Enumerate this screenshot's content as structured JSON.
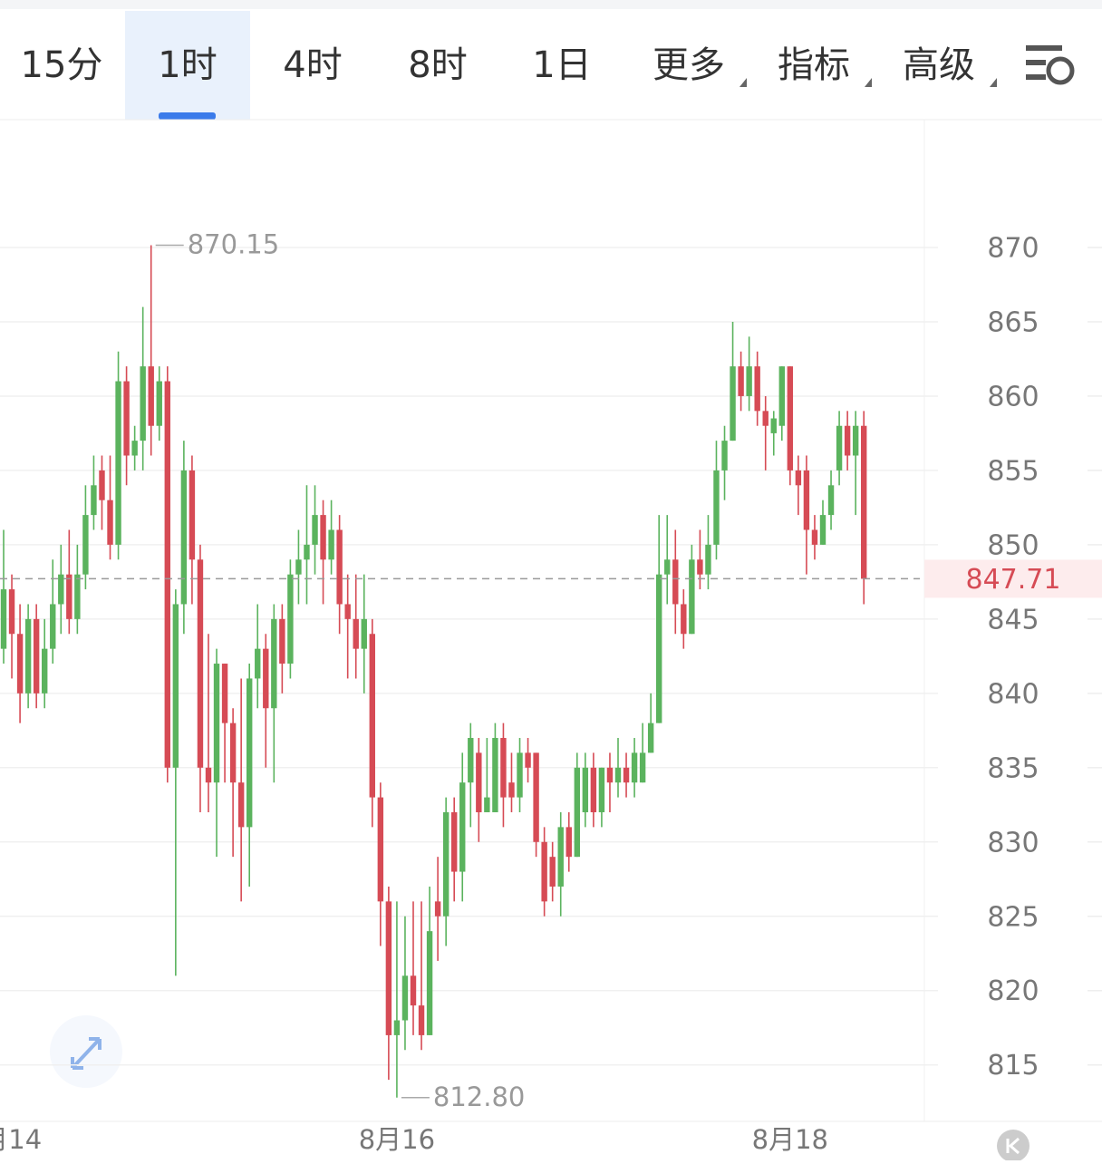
{
  "toolbar": {
    "tabs": [
      "15分",
      "1时",
      "4时",
      "8时",
      "1日",
      "更多",
      "指标",
      "高级"
    ],
    "selected": "1时"
  },
  "chart_data": {
    "type": "candlestick",
    "categories": [
      "8月14",
      null,
      null,
      null,
      null,
      null,
      null,
      null,
      null,
      null,
      null,
      null,
      null,
      null,
      null,
      null,
      null,
      null,
      null,
      null,
      null,
      null,
      null,
      null,
      null,
      null,
      null,
      null,
      null,
      null,
      null,
      null,
      null,
      null,
      null,
      null,
      null,
      null,
      null,
      null,
      null,
      null,
      null,
      null,
      null,
      null,
      null,
      null,
      "8月16",
      null,
      null,
      null,
      null,
      null,
      null,
      null,
      null,
      null,
      null,
      null,
      null,
      null,
      null,
      null,
      null,
      null,
      null,
      null,
      null,
      null,
      null,
      null,
      null,
      null,
      null,
      null,
      null,
      null,
      null,
      null,
      null,
      null,
      null,
      null,
      null,
      null,
      null,
      null,
      null,
      null,
      null,
      null,
      null,
      null,
      null,
      null,
      "8月18",
      null,
      null,
      null,
      null,
      null,
      null,
      null,
      null,
      null
    ],
    "open": [
      843,
      847,
      844,
      840,
      845,
      840,
      843,
      846,
      848,
      845,
      848,
      852,
      855,
      853,
      850,
      861,
      856,
      857,
      862,
      858,
      861,
      835,
      846,
      855,
      849,
      835,
      834,
      842,
      838,
      834,
      831,
      841,
      843,
      839,
      845,
      842,
      848,
      849,
      850,
      852,
      849,
      851,
      846,
      845,
      843,
      844,
      833,
      826,
      817,
      818,
      821,
      819,
      817,
      826,
      825,
      832,
      828,
      834,
      836,
      832,
      832,
      837,
      834,
      833,
      836,
      836,
      830,
      829,
      827,
      831,
      829,
      832,
      835,
      832,
      835,
      834,
      835,
      834,
      834,
      836,
      838,
      848,
      849,
      846,
      844,
      849,
      848,
      850,
      855,
      857,
      862,
      860,
      862,
      859,
      857.5,
      858,
      862,
      855,
      855,
      851,
      850,
      852,
      855,
      858,
      856,
      858
    ],
    "high": [
      851,
      848,
      846,
      846,
      846,
      845,
      849,
      850,
      851,
      850,
      854,
      856,
      856,
      856,
      863,
      862,
      858,
      866,
      870.15,
      862,
      862,
      847,
      857,
      856,
      850,
      844,
      843,
      842,
      839,
      841,
      842,
      846,
      844,
      846,
      846,
      849,
      851,
      854,
      854,
      853,
      853,
      852,
      848,
      848,
      848,
      845,
      834,
      827,
      826,
      825,
      826,
      826,
      827,
      829,
      833,
      833,
      836,
      838,
      837,
      837,
      838,
      838,
      836,
      837,
      837,
      836,
      831,
      830,
      832,
      832,
      836,
      836,
      836,
      835,
      836,
      837,
      836,
      837,
      838,
      840,
      852,
      852,
      851,
      847,
      850,
      851,
      852,
      857,
      858,
      865,
      863,
      864,
      863,
      860,
      859,
      862,
      862,
      856,
      856,
      852,
      853,
      855,
      859,
      859,
      859,
      859
    ],
    "low": [
      842,
      841,
      838,
      839,
      839,
      839,
      842,
      844,
      844,
      844,
      847,
      851,
      851,
      849,
      849,
      854,
      855,
      855,
      856,
      857,
      834,
      821,
      844,
      846,
      832,
      832,
      829,
      834,
      829,
      826,
      827,
      839,
      835,
      834,
      840,
      841,
      846,
      846,
      848,
      846,
      848,
      844,
      841,
      841,
      840,
      831,
      823,
      814,
      812.8,
      816,
      817,
      816,
      817,
      822,
      823,
      826,
      826,
      831,
      830,
      832,
      832,
      831,
      832,
      832,
      834,
      829,
      825,
      826,
      825,
      828,
      829,
      831,
      831,
      831,
      832,
      833,
      833,
      833,
      834,
      836,
      838,
      846,
      844,
      843,
      844,
      847,
      847,
      849,
      853,
      857,
      859,
      859,
      858,
      855,
      856,
      857,
      854,
      852,
      848,
      849,
      850,
      851,
      854,
      855,
      852,
      846
    ],
    "close": [
      847,
      844,
      840,
      845,
      840,
      843,
      846,
      848,
      845,
      848,
      852,
      854,
      853,
      850,
      861,
      856,
      857,
      862,
      858,
      861,
      835,
      846,
      855,
      849,
      835,
      834,
      842,
      838,
      834,
      831,
      841,
      843,
      839,
      845,
      842,
      848,
      849,
      850,
      852,
      849,
      851,
      846,
      845,
      843,
      845,
      833,
      826,
      817,
      818,
      821,
      819,
      817,
      824,
      825,
      832,
      828,
      834,
      837,
      832,
      833,
      837,
      833,
      833,
      836,
      835,
      830,
      826,
      827,
      831,
      829,
      835,
      835,
      832,
      835,
      834,
      835,
      834,
      836,
      836,
      838,
      848,
      849,
      846,
      844,
      849,
      848,
      850,
      855,
      857,
      862,
      860,
      862,
      859,
      858,
      858.5,
      862,
      855,
      854,
      851,
      850,
      852,
      854,
      858,
      856,
      858,
      847.71
    ],
    "up_color": "#5bb35e",
    "down_color": "#d64b55",
    "ylim": [
      811.2,
      878.6
    ],
    "yticks": [
      815,
      820,
      825,
      830,
      835,
      840,
      845,
      850,
      855,
      860,
      865,
      870
    ],
    "grid": true,
    "annotations": [
      {
        "value": 870.15,
        "label": "870.15"
      },
      {
        "value": 812.8,
        "label": "812.80"
      }
    ],
    "last_price": 847.71
  }
}
